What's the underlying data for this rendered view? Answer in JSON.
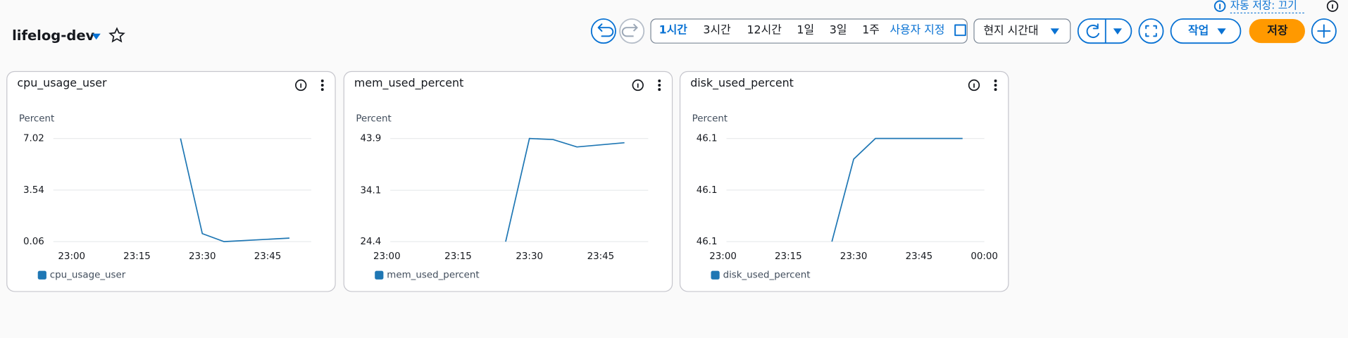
{
  "header": {
    "title": "lifelog-dev",
    "autosave": "자동 저장: 끄기",
    "time_ranges": [
      "1시간",
      "3시간",
      "12시간",
      "1일",
      "3일",
      "1주"
    ],
    "selected_range": 0,
    "custom_range": "사용자 지정",
    "timezone": "현지 시간대",
    "actions": "작업",
    "save": "저장"
  },
  "widgets": [
    {
      "title": "cpu_usage_user",
      "chart_data": {
        "type": "line",
        "y_label": "Percent",
        "x": [
          "23:25",
          "23:30",
          "23:35",
          "23:50"
        ],
        "series": [
          {
            "name": "cpu_usage_user",
            "color": "#1f77b4",
            "values": [
              7.02,
              0.6,
              0.06,
              0.3
            ]
          }
        ],
        "xlim": [
          "22:55",
          "23:55"
        ],
        "xticks": [
          "23:00",
          "23:15",
          "23:30",
          "23:45"
        ],
        "ylim": [
          0.06,
          7.02
        ],
        "yticks": [
          0.06,
          3.54,
          7.02
        ],
        "grid": true
      }
    },
    {
      "title": "mem_used_percent",
      "chart_data": {
        "type": "line",
        "y_label": "Percent",
        "x": [
          "23:25",
          "23:30",
          "23:35",
          "23:40",
          "23:50"
        ],
        "series": [
          {
            "name": "mem_used_percent",
            "color": "#1f77b4",
            "values": [
              24.4,
              43.9,
              43.7,
              42.3,
              43.1
            ]
          }
        ],
        "xlim": [
          "23:00",
          "23:55"
        ],
        "xticks": [
          "23:00",
          "23:15",
          "23:30",
          "23:45"
        ],
        "ylim": [
          24.4,
          43.9
        ],
        "yticks": [
          24.4,
          34.1,
          43.9
        ],
        "grid": true
      }
    },
    {
      "title": "disk_used_percent",
      "chart_data": {
        "type": "line",
        "y_label": "Percent",
        "x": [
          "23:25",
          "23:30",
          "23:35",
          "23:55"
        ],
        "series": [
          {
            "name": "disk_used_percent",
            "color": "#1f77b4",
            "values": [
              46.09,
              46.106,
              46.11,
              46.11
            ]
          }
        ],
        "xlim": [
          "23:00",
          "00:00"
        ],
        "xticks": [
          "23:00",
          "23:15",
          "23:30",
          "23:45",
          "00:00"
        ],
        "ylim": [
          46.09,
          46.11
        ],
        "yticks": [
          {
            "value": 46.09,
            "label": "46.1"
          },
          {
            "value": 46.1,
            "label": "46.1"
          },
          {
            "value": 46.11,
            "label": "46.1"
          }
        ],
        "grid": true
      }
    }
  ]
}
